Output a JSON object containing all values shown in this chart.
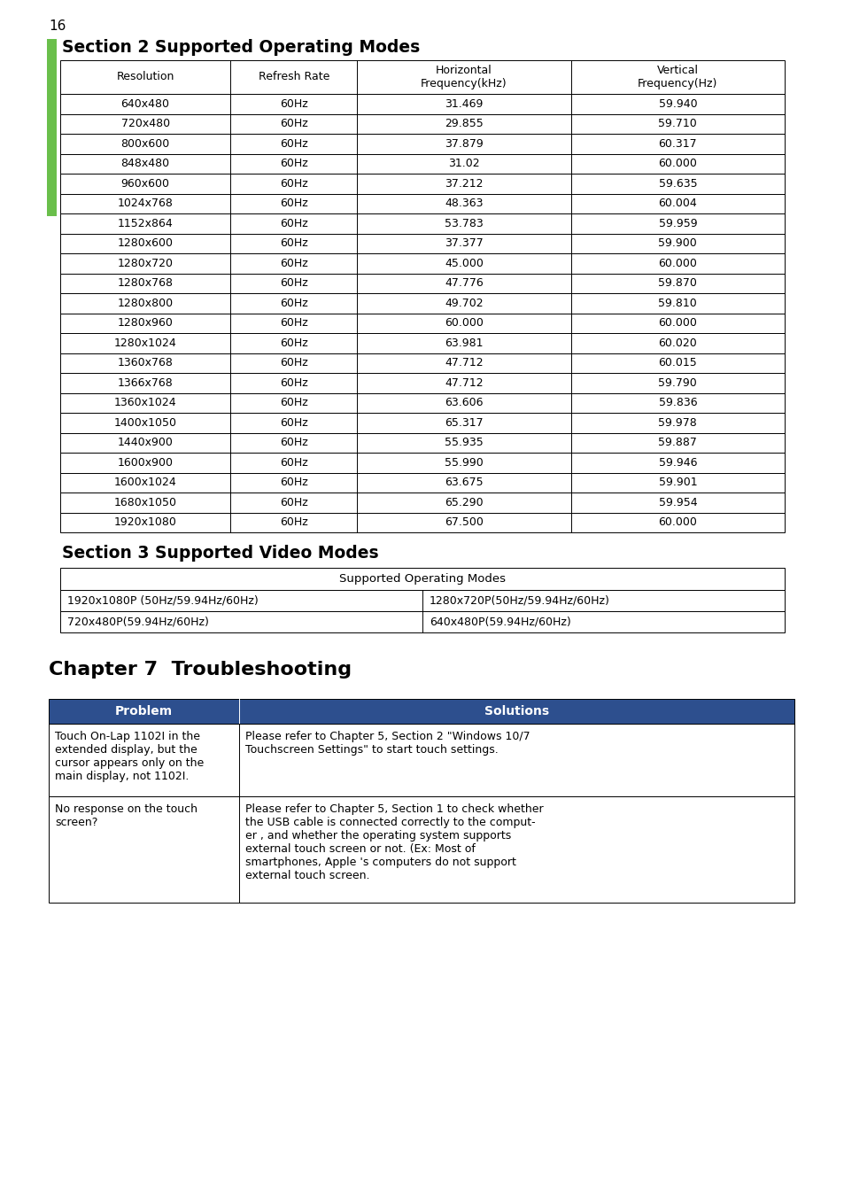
{
  "page_number": "16",
  "section2_title": "Section 2 Supported Operating Modes",
  "section3_title": "Section 3 Supported Video Modes",
  "chapter7_title": "Chapter 7  Troubleshooting",
  "table1_headers": [
    "Resolution",
    "Refresh Rate",
    "Horizontal\nFrequency(kHz)",
    "Vertical\nFrequency(Hz)"
  ],
  "table1_data": [
    [
      "640x480",
      "60Hz",
      "31.469",
      "59.940"
    ],
    [
      "720x480",
      "60Hz",
      "29.855",
      "59.710"
    ],
    [
      "800x600",
      "60Hz",
      "37.879",
      "60.317"
    ],
    [
      "848x480",
      "60Hz",
      "31.02",
      "60.000"
    ],
    [
      "960x600",
      "60Hz",
      "37.212",
      "59.635"
    ],
    [
      "1024x768",
      "60Hz",
      "48.363",
      "60.004"
    ],
    [
      "1152x864",
      "60Hz",
      "53.783",
      "59.959"
    ],
    [
      "1280x600",
      "60Hz",
      "37.377",
      "59.900"
    ],
    [
      "1280x720",
      "60Hz",
      "45.000",
      "60.000"
    ],
    [
      "1280x768",
      "60Hz",
      "47.776",
      "59.870"
    ],
    [
      "1280x800",
      "60Hz",
      "49.702",
      "59.810"
    ],
    [
      "1280x960",
      "60Hz",
      "60.000",
      "60.000"
    ],
    [
      "1280x1024",
      "60Hz",
      "63.981",
      "60.020"
    ],
    [
      "1360x768",
      "60Hz",
      "47.712",
      "60.015"
    ],
    [
      "1366x768",
      "60Hz",
      "47.712",
      "59.790"
    ],
    [
      "1360x1024",
      "60Hz",
      "63.606",
      "59.836"
    ],
    [
      "1400x1050",
      "60Hz",
      "65.317",
      "59.978"
    ],
    [
      "1440x900",
      "60Hz",
      "55.935",
      "59.887"
    ],
    [
      "1600x900",
      "60Hz",
      "55.990",
      "59.946"
    ],
    [
      "1600x1024",
      "60Hz",
      "63.675",
      "59.901"
    ],
    [
      "1680x1050",
      "60Hz",
      "65.290",
      "59.954"
    ],
    [
      "1920x1080",
      "60Hz",
      "67.500",
      "60.000"
    ]
  ],
  "table2_header": "Supported Operating Modes",
  "table2_data": [
    [
      "1920x1080P (50Hz/59.94Hz/60Hz)",
      "1280x720P(50Hz/59.94Hz/60Hz)"
    ],
    [
      "720x480P(59.94Hz/60Hz)",
      "640x480P(59.94Hz/60Hz)"
    ]
  ],
  "trouble_headers": [
    "Problem",
    "Solutions"
  ],
  "trouble_data": [
    [
      "Touch On-Lap 1102I in the\nextended display, but the\ncursor appears only on the\nmain display, not 1102I.",
      "Please refer to Chapter 5, Section 2 \"Windows 10/7\nTouchscreen Settings\" to start touch settings."
    ],
    [
      "No response on the touch\nscreen?",
      "Please refer to Chapter 5, Section 1 to check whether\nthe USB cable is connected correctly to the comput-\ner , and whether the operating system supports\nexternal touch screen or not. (Ex: Most of\nsmartphones, Apple 's computers do not support\nexternal touch screen."
    ]
  ],
  "header_bg": "#2d4f8e",
  "header_fg": "#ffffff",
  "accent_green": "#6abf4b",
  "bg_color": "#ffffff",
  "text_color": "#000000",
  "border_color": "#000000"
}
